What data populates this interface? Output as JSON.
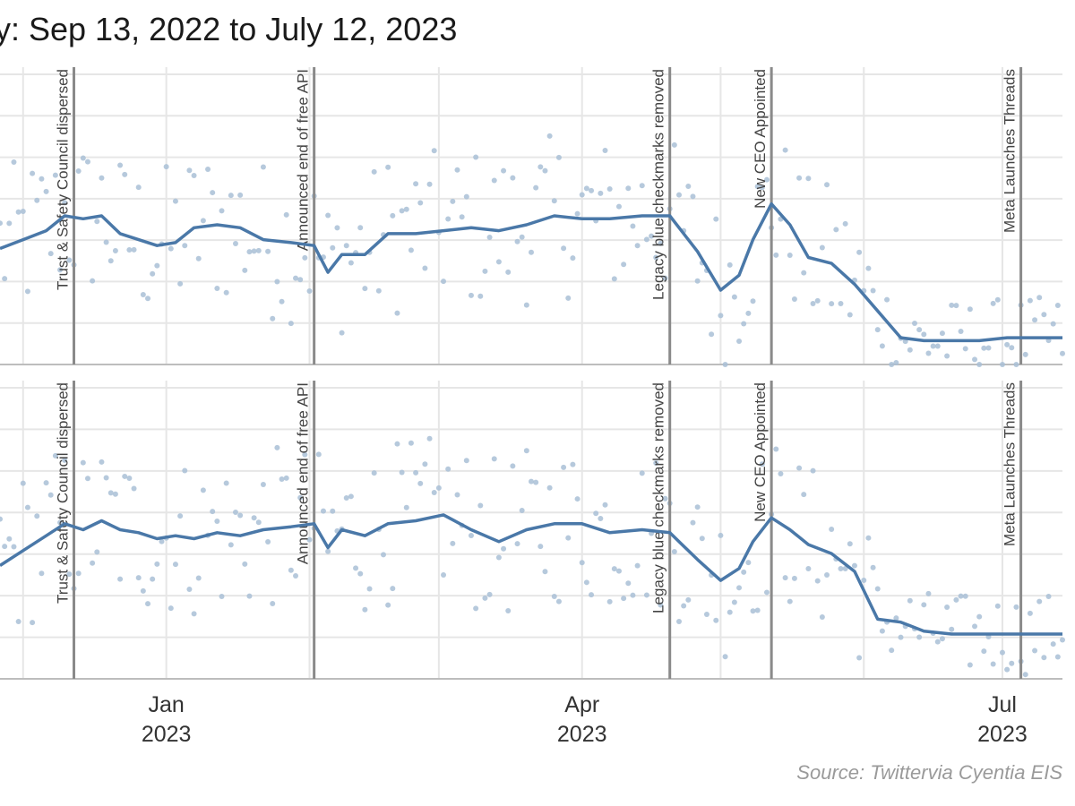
{
  "title": "y: Sep 13, 2022 to July 12, 2023",
  "source": "Source: Twittervia Cyentia EIS",
  "colors": {
    "line": "#4a78a8",
    "dots": "#a9bfd6",
    "event_line": "#8a8a8a",
    "grid": "#e6e6e6"
  },
  "chart_data": [
    {
      "type": "line",
      "panel": "top",
      "x_range": [
        "2022-11-26",
        "2023-07-14"
      ],
      "x_ticks": [
        {
          "date": "2023-01-01",
          "month": "Jan",
          "year": "2023"
        },
        {
          "date": "2023-04-01",
          "month": "Apr",
          "year": "2023"
        },
        {
          "date": "2023-07-01",
          "month": "Jul",
          "year": "2023"
        }
      ],
      "annotations": [
        {
          "date": "2022-12-12",
          "label": "Trust & Safety Council dispersed"
        },
        {
          "date": "2023-02-02",
          "label": "Announced end of free API"
        },
        {
          "date": "2023-04-20",
          "label": "Legacy blue checkmarks removed"
        },
        {
          "date": "2023-05-12",
          "label": "New CEO Appointed"
        },
        {
          "date": "2023-07-05",
          "label": "Meta Launches Threads"
        }
      ],
      "series": [
        {
          "kind": "rolling_average",
          "points": [
            [
              "2022-11-26",
              0.39
            ],
            [
              "2022-12-01",
              0.42
            ],
            [
              "2022-12-06",
              0.45
            ],
            [
              "2022-12-10",
              0.5
            ],
            [
              "2022-12-14",
              0.49
            ],
            [
              "2022-12-18",
              0.5
            ],
            [
              "2022-12-22",
              0.44
            ],
            [
              "2022-12-26",
              0.42
            ],
            [
              "2022-12-30",
              0.4
            ],
            [
              "2023-01-03",
              0.41
            ],
            [
              "2023-01-07",
              0.46
            ],
            [
              "2023-01-12",
              0.47
            ],
            [
              "2023-01-17",
              0.46
            ],
            [
              "2023-01-22",
              0.42
            ],
            [
              "2023-01-28",
              0.41
            ],
            [
              "2023-02-02",
              0.4
            ],
            [
              "2023-02-05",
              0.31
            ],
            [
              "2023-02-08",
              0.37
            ],
            [
              "2023-02-13",
              0.37
            ],
            [
              "2023-02-18",
              0.44
            ],
            [
              "2023-02-24",
              0.44
            ],
            [
              "2023-03-02",
              0.45
            ],
            [
              "2023-03-08",
              0.46
            ],
            [
              "2023-03-14",
              0.45
            ],
            [
              "2023-03-20",
              0.47
            ],
            [
              "2023-03-26",
              0.5
            ],
            [
              "2023-04-01",
              0.49
            ],
            [
              "2023-04-07",
              0.49
            ],
            [
              "2023-04-14",
              0.5
            ],
            [
              "2023-04-20",
              0.5
            ],
            [
              "2023-04-26",
              0.38
            ],
            [
              "2023-05-01",
              0.25
            ],
            [
              "2023-05-05",
              0.3
            ],
            [
              "2023-05-08",
              0.42
            ],
            [
              "2023-05-12",
              0.54
            ],
            [
              "2023-05-16",
              0.47
            ],
            [
              "2023-05-20",
              0.36
            ],
            [
              "2023-05-25",
              0.34
            ],
            [
              "2023-05-30",
              0.27
            ],
            [
              "2023-06-04",
              0.18
            ],
            [
              "2023-06-09",
              0.09
            ],
            [
              "2023-06-14",
              0.08
            ],
            [
              "2023-06-20",
              0.08
            ],
            [
              "2023-06-26",
              0.08
            ],
            [
              "2023-07-02",
              0.09
            ],
            [
              "2023-07-08",
              0.09
            ],
            [
              "2023-07-14",
              0.09
            ]
          ]
        }
      ]
    },
    {
      "type": "line",
      "panel": "bottom",
      "x_range": [
        "2022-11-26",
        "2023-07-14"
      ],
      "annotations": [
        {
          "date": "2022-12-12",
          "label": "Trust & Safety Council dispersed"
        },
        {
          "date": "2023-02-02",
          "label": "Announced end of free API"
        },
        {
          "date": "2023-04-20",
          "label": "Legacy blue checkmarks removed"
        },
        {
          "date": "2023-05-12",
          "label": "New CEO Appointed"
        },
        {
          "date": "2023-07-05",
          "label": "Meta Launches Threads"
        }
      ],
      "series": [
        {
          "kind": "rolling_average",
          "points": [
            [
              "2022-11-26",
              0.38
            ],
            [
              "2022-12-01",
              0.43
            ],
            [
              "2022-12-06",
              0.48
            ],
            [
              "2022-12-10",
              0.52
            ],
            [
              "2022-12-14",
              0.5
            ],
            [
              "2022-12-18",
              0.53
            ],
            [
              "2022-12-22",
              0.5
            ],
            [
              "2022-12-26",
              0.49
            ],
            [
              "2022-12-30",
              0.47
            ],
            [
              "2023-01-03",
              0.48
            ],
            [
              "2023-01-07",
              0.47
            ],
            [
              "2023-01-12",
              0.49
            ],
            [
              "2023-01-17",
              0.48
            ],
            [
              "2023-01-22",
              0.5
            ],
            [
              "2023-01-28",
              0.51
            ],
            [
              "2023-02-02",
              0.52
            ],
            [
              "2023-02-05",
              0.44
            ],
            [
              "2023-02-08",
              0.5
            ],
            [
              "2023-02-13",
              0.48
            ],
            [
              "2023-02-18",
              0.52
            ],
            [
              "2023-02-24",
              0.53
            ],
            [
              "2023-03-02",
              0.55
            ],
            [
              "2023-03-08",
              0.5
            ],
            [
              "2023-03-14",
              0.46
            ],
            [
              "2023-03-20",
              0.5
            ],
            [
              "2023-03-26",
              0.52
            ],
            [
              "2023-04-01",
              0.52
            ],
            [
              "2023-04-07",
              0.49
            ],
            [
              "2023-04-14",
              0.5
            ],
            [
              "2023-04-20",
              0.49
            ],
            [
              "2023-04-26",
              0.4
            ],
            [
              "2023-05-01",
              0.33
            ],
            [
              "2023-05-05",
              0.37
            ],
            [
              "2023-05-08",
              0.46
            ],
            [
              "2023-05-12",
              0.54
            ],
            [
              "2023-05-16",
              0.5
            ],
            [
              "2023-05-20",
              0.45
            ],
            [
              "2023-05-25",
              0.42
            ],
            [
              "2023-05-30",
              0.36
            ],
            [
              "2023-06-04",
              0.2
            ],
            [
              "2023-06-09",
              0.19
            ],
            [
              "2023-06-14",
              0.16
            ],
            [
              "2023-06-20",
              0.15
            ],
            [
              "2023-06-26",
              0.15
            ],
            [
              "2023-07-02",
              0.15
            ],
            [
              "2023-07-08",
              0.15
            ],
            [
              "2023-07-14",
              0.15
            ]
          ]
        }
      ]
    }
  ]
}
